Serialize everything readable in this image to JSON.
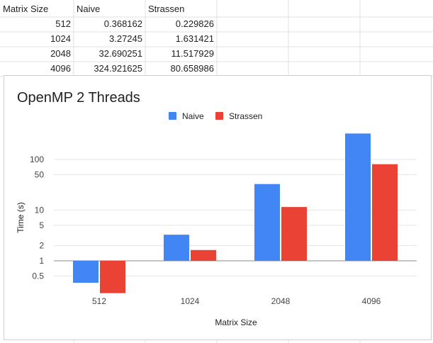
{
  "sheet": {
    "headers": [
      "Matrix Size",
      "Naive",
      "Strassen"
    ],
    "rows": [
      [
        "512",
        "0.368162",
        "0.229826"
      ],
      [
        "1024",
        "3.27245",
        "1.631421"
      ],
      [
        "2048",
        "32.690251",
        "11.517929"
      ],
      [
        "4096",
        "324.921625",
        "80.658986"
      ]
    ]
  },
  "chart_data": {
    "type": "bar",
    "title": "OpenMP 2 Threads",
    "xlabel": "Matrix Size",
    "ylabel": "Time (s)",
    "yscale": "log",
    "ylim": [
      0.25,
      400
    ],
    "ytick_labels": [
      "0.5",
      "1",
      "2",
      "5",
      "10",
      "50",
      "100"
    ],
    "ytick_values": [
      0.5,
      1,
      2,
      5,
      10,
      50,
      100
    ],
    "categories": [
      "512",
      "1024",
      "2048",
      "4096"
    ],
    "series": [
      {
        "name": "Naive",
        "color": "#4285f4",
        "values": [
          0.368162,
          3.27245,
          32.690251,
          324.921625
        ]
      },
      {
        "name": "Strassen",
        "color": "#ea4335",
        "values": [
          0.229826,
          1.631421,
          11.517929,
          80.658986
        ]
      }
    ],
    "legend_position": "top-center",
    "grid": true
  }
}
